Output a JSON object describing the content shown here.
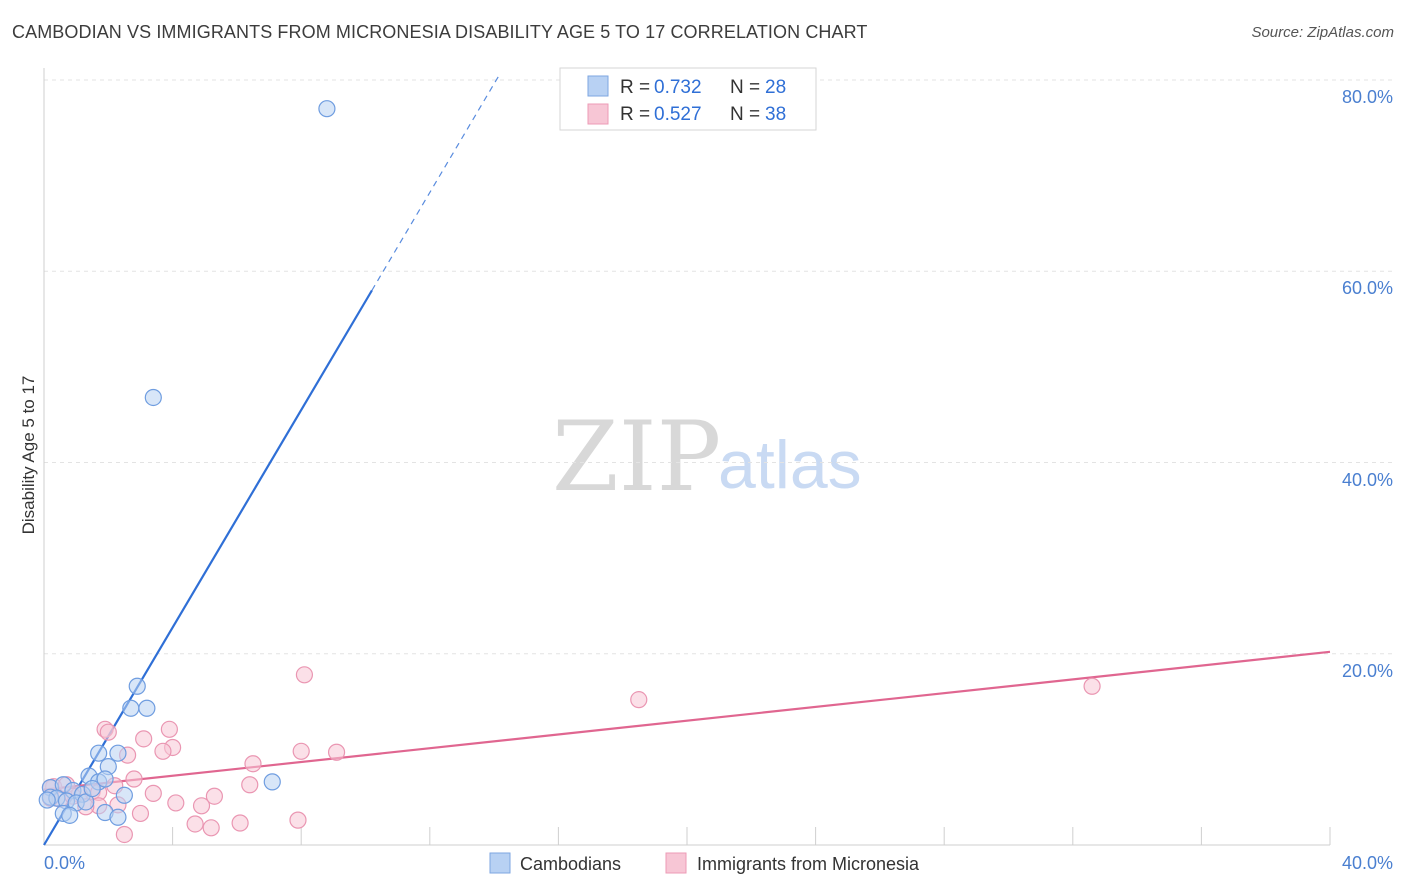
{
  "title": "CAMBODIAN VS IMMIGRANTS FROM MICRONESIA DISABILITY AGE 5 TO 17 CORRELATION CHART",
  "source": "Source: ZipAtlas.com",
  "watermark": {
    "zip": "ZIP",
    "atlas": "atlas"
  },
  "colors": {
    "blue": "#2f6fd6",
    "blue_fill": "#b8d1f3",
    "pink": "#e06690",
    "pink_fill": "#f7c6d5",
    "grid": "#e3e3e3",
    "tick_text": "#4a7fd0"
  },
  "legend": {
    "r_label": "R = ",
    "n_label": "N = ",
    "rows": [
      {
        "r": "0.732",
        "n": "28"
      },
      {
        "r": "0.527",
        "n": "38"
      }
    ]
  },
  "chart_data": {
    "type": "scatter",
    "title": "CAMBODIAN VS IMMIGRANTS FROM MICRONESIA DISABILITY AGE 5 TO 17 CORRELATION CHART",
    "xlabel": "",
    "ylabel": "Disability Age 5 to 17",
    "xlim": [
      0,
      40
    ],
    "ylim": [
      0,
      80
    ],
    "x_ticks_labeled": [
      "0.0%",
      "40.0%"
    ],
    "y_ticks_labeled": [
      "20.0%",
      "40.0%",
      "60.0%",
      "80.0%"
    ],
    "grid": true,
    "legend_position": "top-center",
    "series": [
      {
        "name": "Cambodians",
        "color": "#2f6fd6",
        "r": 0.732,
        "n": 28,
        "trend": {
          "x0": 0,
          "y0": 0,
          "x1": 10.2,
          "y1": 58,
          "dashed_to_x": 14.2
        },
        "points": [
          [
            8.8,
            77.0
          ],
          [
            3.4,
            46.8
          ],
          [
            2.9,
            16.6
          ],
          [
            2.7,
            14.3
          ],
          [
            3.2,
            14.3
          ],
          [
            1.7,
            9.6
          ],
          [
            2.3,
            9.6
          ],
          [
            2.0,
            8.2
          ],
          [
            1.4,
            7.2
          ],
          [
            1.7,
            6.6
          ],
          [
            7.1,
            6.6
          ],
          [
            0.2,
            6.0
          ],
          [
            0.6,
            6.3
          ],
          [
            0.9,
            5.7
          ],
          [
            1.2,
            5.3
          ],
          [
            2.5,
            5.2
          ],
          [
            0.2,
            5.0
          ],
          [
            0.4,
            4.9
          ],
          [
            0.7,
            4.6
          ],
          [
            1.0,
            4.4
          ],
          [
            0.1,
            4.7
          ],
          [
            1.3,
            4.5
          ],
          [
            0.6,
            3.3
          ],
          [
            1.5,
            5.9
          ],
          [
            0.8,
            3.1
          ],
          [
            1.9,
            3.4
          ],
          [
            2.3,
            2.9
          ],
          [
            1.9,
            6.9
          ]
        ]
      },
      {
        "name": "Immigrants from Micronesia",
        "color": "#e06690",
        "r": 0.527,
        "n": 38,
        "trend": {
          "x0": 0,
          "y0": 5.8,
          "x1": 40,
          "y1": 20.2
        },
        "points": [
          [
            8.1,
            17.8
          ],
          [
            18.5,
            15.2
          ],
          [
            32.6,
            16.6
          ],
          [
            1.9,
            12.1
          ],
          [
            2.0,
            11.8
          ],
          [
            3.9,
            12.1
          ],
          [
            3.1,
            11.1
          ],
          [
            4.0,
            10.2
          ],
          [
            3.7,
            9.8
          ],
          [
            8.0,
            9.8
          ],
          [
            9.1,
            9.7
          ],
          [
            2.6,
            9.4
          ],
          [
            6.5,
            8.5
          ],
          [
            2.8,
            6.9
          ],
          [
            6.4,
            6.3
          ],
          [
            2.2,
            6.2
          ],
          [
            0.3,
            6.1
          ],
          [
            0.7,
            6.3
          ],
          [
            1.5,
            5.6
          ],
          [
            1.1,
            5.3
          ],
          [
            1.7,
            5.5
          ],
          [
            3.4,
            5.4
          ],
          [
            4.1,
            4.4
          ],
          [
            5.3,
            5.1
          ],
          [
            2.3,
            4.2
          ],
          [
            4.9,
            4.1
          ],
          [
            1.7,
            4.1
          ],
          [
            1.3,
            4.0
          ],
          [
            3.0,
            3.3
          ],
          [
            0.2,
            4.9
          ],
          [
            0.5,
            4.8
          ],
          [
            0.9,
            5.1
          ],
          [
            4.7,
            2.2
          ],
          [
            6.1,
            2.3
          ],
          [
            5.2,
            1.8
          ],
          [
            7.9,
            2.6
          ],
          [
            2.5,
            1.1
          ],
          [
            0.2,
            6.0
          ]
        ]
      }
    ]
  }
}
